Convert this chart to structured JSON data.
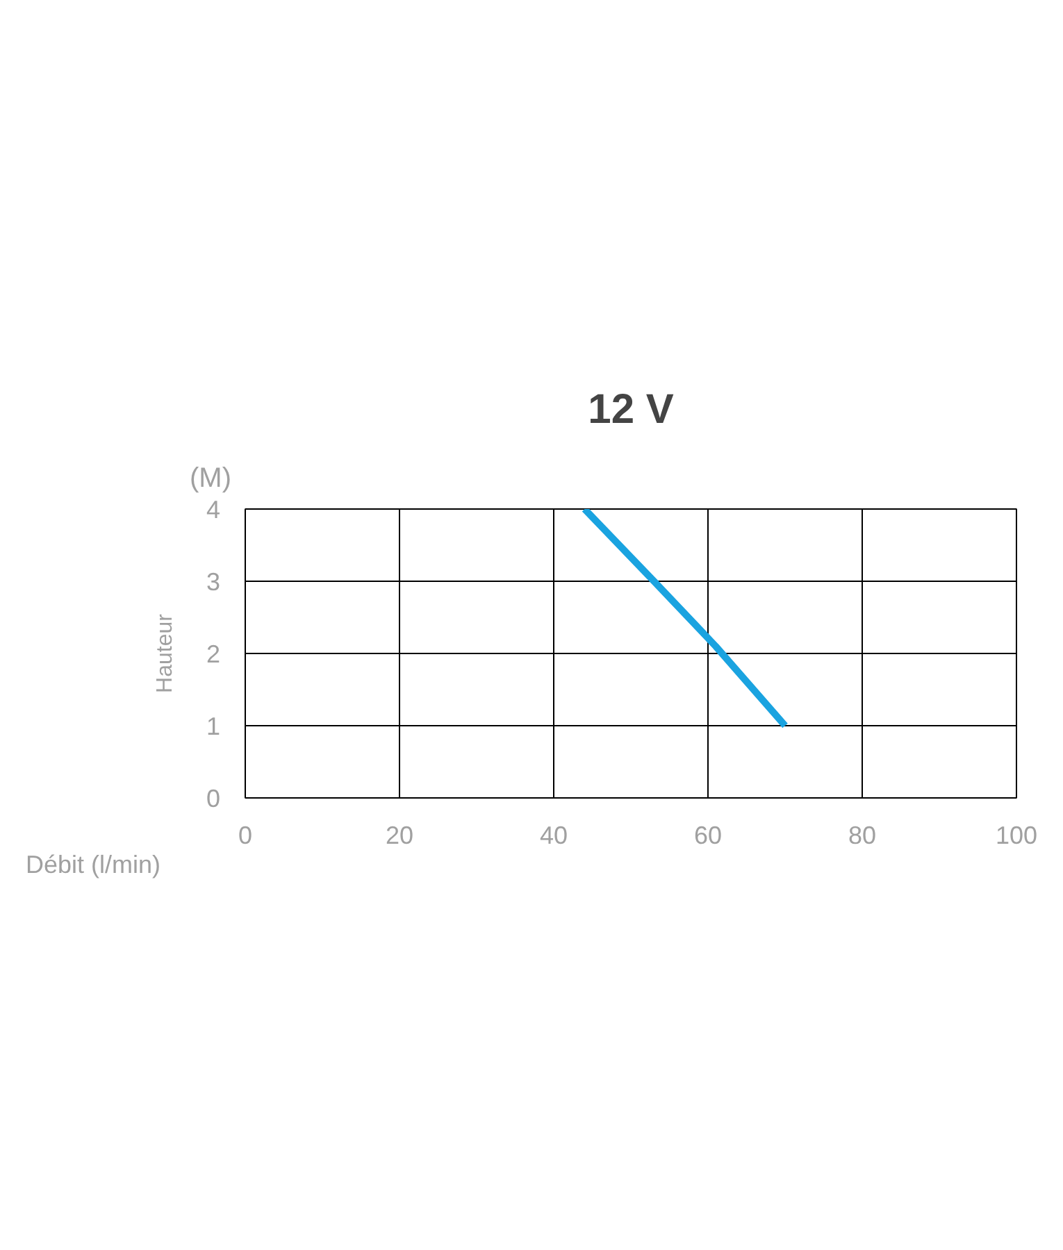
{
  "chart_data": {
    "type": "line",
    "title": "12 V",
    "xlabel": "Débit (l/min)",
    "ylabel": "Hauteur",
    "annotations": [
      "(M)"
    ],
    "x": [
      44,
      53,
      61,
      70
    ],
    "series": [
      {
        "color": "#1aa3e0",
        "values": [
          4,
          3,
          2.1,
          1
        ]
      }
    ],
    "xlim": [
      0,
      100
    ],
    "xticks": [
      0,
      20,
      40,
      60,
      80,
      100
    ],
    "ylim": [
      0,
      4
    ],
    "yticks": [
      0,
      1,
      2,
      3,
      4
    ],
    "grid": true,
    "marker": "none",
    "line_style": "solid"
  }
}
